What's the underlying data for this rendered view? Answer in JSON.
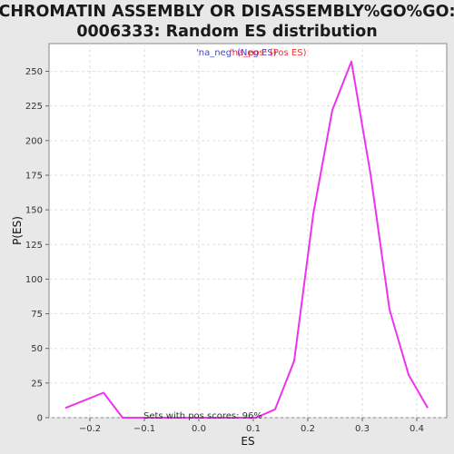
{
  "chart_data": {
    "type": "line",
    "title_line1": "CHROMATIN ASSEMBLY OR DISASSEMBLY%GO%GO:",
    "title_line2": "0006333: Random ES distribution",
    "xlabel": "ES",
    "ylabel": "P(ES)",
    "xlim": [
      -0.275,
      0.455
    ],
    "ylim": [
      0,
      270
    ],
    "x_ticks": [
      -0.2,
      -0.1,
      0.0,
      0.1,
      0.2,
      0.3,
      0.4
    ],
    "x_tick_labels": [
      "−0.2",
      "−0.1",
      "0.0",
      "0.1",
      "0.2",
      "0.3",
      "0.4"
    ],
    "y_ticks": [
      0,
      25,
      50,
      75,
      100,
      125,
      150,
      175,
      200,
      225,
      250
    ],
    "y_tick_labels": [
      "0",
      "25",
      "50",
      "75",
      "100",
      "125",
      "150",
      "175",
      "200",
      "225",
      "250"
    ],
    "grid": true,
    "legend": {
      "placement": "top-center",
      "entries": [
        {
          "label": "'na_neg' (Neg ES)",
          "color": "#4444cc"
        },
        {
          "label": "'na_pos' (Pos ES)",
          "color": "#ee3333"
        }
      ]
    },
    "annotation": "Sets with pos scores: 96%",
    "series": [
      {
        "color": "#ee33ee",
        "x": [
          -0.245,
          -0.175,
          -0.14,
          -0.105,
          0.105,
          0.14,
          0.175,
          0.21,
          0.245,
          0.28,
          0.315,
          0.35,
          0.385,
          0.42
        ],
        "y": [
          7,
          18,
          0,
          0,
          0,
          6,
          41,
          147,
          222,
          257,
          176,
          78,
          31,
          7
        ]
      }
    ]
  }
}
